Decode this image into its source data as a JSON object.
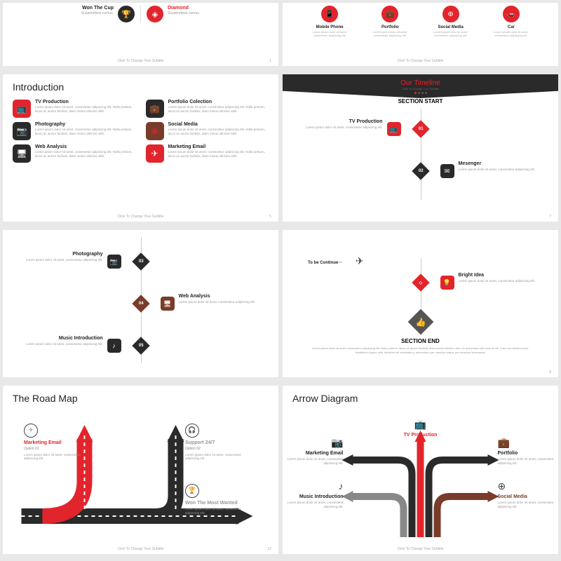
{
  "colors": {
    "red": "#e2252c",
    "dark": "#2a2a2a",
    "brown": "#7a3c2a",
    "gray": "#555"
  },
  "lorem_short": "Lorem ipsum dolor sit amet, consectetur adipiscing elit.",
  "lorem_med": "Lorem ipsum dolor sit amet, consectetur adipiscing elit. Nulla pretium, lacus ac auctor facilisis, diam metus ultricies nibh.",
  "footer": "Click To Change Your Subtitle",
  "s1": {
    "left": {
      "title": "Won The Cup",
      "desc": "Suspendisse cursus."
    },
    "right": {
      "title": "Diamond",
      "desc": "Suspendisse cursus."
    }
  },
  "s2": {
    "items": [
      {
        "label": "Mobile Phone"
      },
      {
        "label": "Portfolio"
      },
      {
        "label": "Social Media"
      },
      {
        "label": "Car"
      }
    ]
  },
  "intro": {
    "title": "Introduction",
    "items": [
      {
        "title": "TV Production",
        "icon": "📺",
        "cls": "red"
      },
      {
        "title": "Portfolio Colection",
        "icon": "💼",
        "cls": "dark"
      },
      {
        "title": "Photography",
        "icon": "📷",
        "cls": "dark"
      },
      {
        "title": "Social Media",
        "icon": "⊕",
        "cls": "brown"
      },
      {
        "title": "Web Analysis",
        "icon": "🖥",
        "cls": "dark"
      },
      {
        "title": "Marketing Email",
        "icon": "✈",
        "cls": "red"
      }
    ]
  },
  "tl": {
    "title": "Our Timeline",
    "sub": "Click To Change Your Subtitle",
    "section_start": "SECTION START",
    "section_end": "SECTION END",
    "n1": {
      "num": "01",
      "title": "TV Production"
    },
    "n2": {
      "num": "02",
      "title": "Mesenger"
    },
    "n3": {
      "num": "03",
      "title": "Photography"
    },
    "n4": {
      "num": "04",
      "title": "Web Analysis"
    },
    "n5": {
      "num": "05",
      "title": "Music Introduction"
    },
    "bright": {
      "title": "Bright Idea"
    },
    "tbc": "To be Continue···",
    "end_text": "Lorem ipsum dolor sit amet, consectetur adipiscing elit. Nulla pretium, lacus ac auctor facilisis, diam metus ultricies nibh, eu accumsan velit risus at elit. Cras non ultrices tortor. Vestibulum ipsum velit, tincidunt vel venenatis a, elementum per conubia nostra, per inceptos himenaeos."
  },
  "roadmap": {
    "title": "The Road Map",
    "n1": {
      "title": "Marketing Email",
      "opt": "Option 01"
    },
    "n2": {
      "title": "Support 24/7",
      "opt": "Option 02"
    },
    "n3": {
      "title": "Won The Most Wanted"
    }
  },
  "arrow": {
    "title": "Arrow Diagram",
    "items": [
      {
        "title": "Marketing Email",
        "cls": ""
      },
      {
        "title": "TV Production",
        "cls": "red"
      },
      {
        "title": "Portfolio",
        "cls": ""
      },
      {
        "title": "Music Introduction",
        "cls": ""
      },
      {
        "title": "Social Media",
        "cls": "brown"
      }
    ]
  },
  "pages": {
    "p1": "1",
    "p5": "5",
    "p7": "7",
    "p8": "8",
    "p12": "12"
  }
}
